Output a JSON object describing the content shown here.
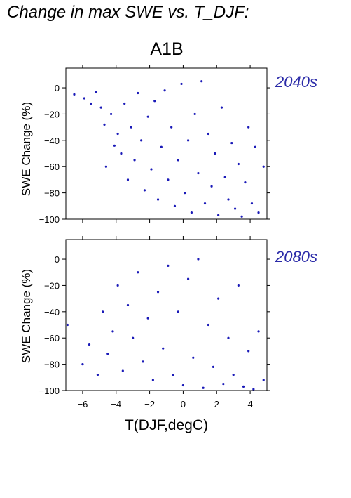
{
  "figure": {
    "title": "Change in max SWE vs. T_DJF:",
    "scenario": "A1B",
    "xlabel": "T(DJF,degC)"
  },
  "colors": {
    "points": "#1a1ab8",
    "period_label": "#2a2aa8"
  },
  "chart_data": [
    {
      "type": "scatter",
      "panel_label": "2040s",
      "ylabel": "SWE Change (%)",
      "xlim": [
        -7,
        5
      ],
      "ylim": [
        -100,
        15
      ],
      "xticks": [
        -6,
        -4,
        -2,
        0,
        2,
        4
      ],
      "yticks": [
        0,
        -20,
        -40,
        -60,
        -80,
        -100
      ],
      "grid": false,
      "series": [
        {
          "points": [
            [
              -6.5,
              -5
            ],
            [
              -5.9,
              -8
            ],
            [
              -5.5,
              -12
            ],
            [
              -5.2,
              -3
            ],
            [
              -4.9,
              -15
            ],
            [
              -4.7,
              -28
            ],
            [
              -4.6,
              -60
            ],
            [
              -4.3,
              -20
            ],
            [
              -4.1,
              -44
            ],
            [
              -3.9,
              -35
            ],
            [
              -3.7,
              -50
            ],
            [
              -3.5,
              -12
            ],
            [
              -3.3,
              -70
            ],
            [
              -3.1,
              -30
            ],
            [
              -2.9,
              -55
            ],
            [
              -2.7,
              -4
            ],
            [
              -2.5,
              -40
            ],
            [
              -2.3,
              -78
            ],
            [
              -2.1,
              -22
            ],
            [
              -1.9,
              -62
            ],
            [
              -1.7,
              -10
            ],
            [
              -1.5,
              -85
            ],
            [
              -1.3,
              -45
            ],
            [
              -1.1,
              -2
            ],
            [
              -0.9,
              -70
            ],
            [
              -0.7,
              -30
            ],
            [
              -0.5,
              -90
            ],
            [
              -0.3,
              -55
            ],
            [
              -0.1,
              3
            ],
            [
              0.1,
              -80
            ],
            [
              0.3,
              -40
            ],
            [
              0.5,
              -95
            ],
            [
              0.7,
              -20
            ],
            [
              0.9,
              -65
            ],
            [
              1.1,
              5
            ],
            [
              1.3,
              -88
            ],
            [
              1.5,
              -35
            ],
            [
              1.7,
              -75
            ],
            [
              1.9,
              -50
            ],
            [
              2.1,
              -97
            ],
            [
              2.3,
              -15
            ],
            [
              2.5,
              -68
            ],
            [
              2.7,
              -85
            ],
            [
              2.9,
              -42
            ],
            [
              3.1,
              -92
            ],
            [
              3.3,
              -58
            ],
            [
              3.5,
              -98
            ],
            [
              3.7,
              -72
            ],
            [
              3.9,
              -30
            ],
            [
              4.1,
              -88
            ],
            [
              4.3,
              -45
            ],
            [
              4.5,
              -95
            ],
            [
              4.8,
              -60
            ]
          ]
        }
      ]
    },
    {
      "type": "scatter",
      "panel_label": "2080s",
      "ylabel": "SWE Change (%)",
      "xlim": [
        -7,
        5
      ],
      "ylim": [
        -100,
        15
      ],
      "xticks": [
        -6,
        -4,
        -2,
        0,
        2,
        4
      ],
      "yticks": [
        0,
        -20,
        -40,
        -60,
        -80,
        -100
      ],
      "grid": false,
      "series": [
        {
          "points": [
            [
              -6.9,
              -50
            ],
            [
              -6.0,
              -80
            ],
            [
              -5.6,
              -65
            ],
            [
              -5.1,
              -88
            ],
            [
              -4.8,
              -40
            ],
            [
              -4.5,
              -72
            ],
            [
              -4.2,
              -55
            ],
            [
              -3.9,
              -20
            ],
            [
              -3.6,
              -85
            ],
            [
              -3.3,
              -35
            ],
            [
              -3.0,
              -60
            ],
            [
              -2.7,
              -10
            ],
            [
              -2.4,
              -78
            ],
            [
              -2.1,
              -45
            ],
            [
              -1.8,
              -92
            ],
            [
              -1.5,
              -25
            ],
            [
              -1.2,
              -68
            ],
            [
              -0.9,
              -5
            ],
            [
              -0.6,
              -88
            ],
            [
              -0.3,
              -40
            ],
            [
              0.0,
              -96
            ],
            [
              0.3,
              -15
            ],
            [
              0.6,
              -75
            ],
            [
              0.9,
              0
            ],
            [
              1.2,
              -98
            ],
            [
              1.5,
              -50
            ],
            [
              1.8,
              -82
            ],
            [
              2.1,
              -30
            ],
            [
              2.4,
              -95
            ],
            [
              2.7,
              -60
            ],
            [
              3.0,
              -88
            ],
            [
              3.3,
              -20
            ],
            [
              3.6,
              -97
            ],
            [
              3.9,
              -70
            ],
            [
              4.2,
              -99
            ],
            [
              4.5,
              -55
            ],
            [
              4.8,
              -92
            ]
          ]
        }
      ]
    }
  ]
}
